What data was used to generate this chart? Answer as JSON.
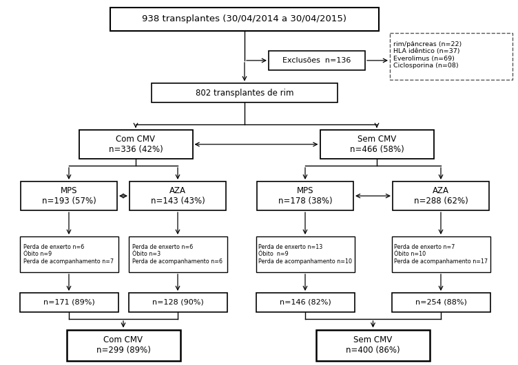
{
  "title": "938 transplantes (30/04/2014 a 30/04/2015)",
  "exclusoes": "Exclusões  n=136",
  "dashed_box": "rim/pâncreas (n=22)\nHLA idêntico (n=37)\nEverolimus (n=69)\nCiclosporina (n=08)",
  "box_802": "802 transplantes de rim",
  "com_cmv": "Com CMV\nn=336 (42%)",
  "sem_cmv": "Sem CMV\nn=466 (58%)",
  "mps_left": "MPS\nn=193 (57%)",
  "aza_left": "AZA\nn=143 (43%)",
  "mps_right": "MPS\nn=178 (38%)",
  "aza_right": "AZA\nn=288 (62%)",
  "loss_mps_left": "Perda de enxerto n=6\nÓbito n=9\nPerda de acompanhamento n=7",
  "loss_aza_left": "Perda de enxerto n=6\nÓbito n=3\nPerda de acompanhamento n=6",
  "loss_mps_right": "Perda de enxerto n=13\nÓbito  n=9\nPerda de acompanhamento n=10",
  "loss_aza_right": "Perda de enxerto n=7\nÓbito n=10\nPerda de acompanhamento n=17",
  "n171": "n=171 (89%)",
  "n128": "n=128 (90%)",
  "n146": "n=146 (82%)",
  "n254": "n=254 (88%)",
  "final_com": "Com CMV\nn=299 (89%)",
  "final_sem": "Sem CMV\nn=400 (86%)",
  "bg_color": "#ffffff",
  "text_color": "#000000",
  "arrow_color": "#000000"
}
